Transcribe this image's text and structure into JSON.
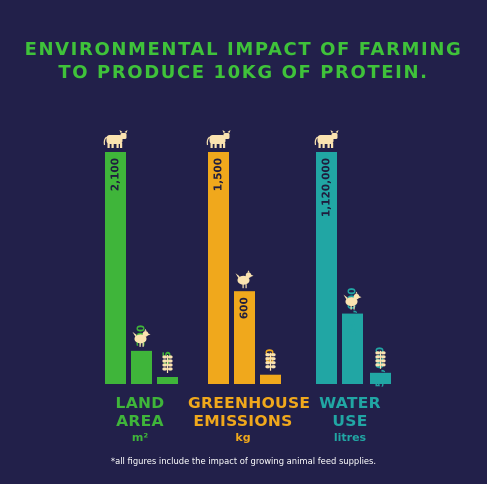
{
  "colors": {
    "background": "#22204a",
    "land": "#3fb53a",
    "greenhouse": "#f0a81c",
    "water": "#21a6a4",
    "icon": "#fbe3b0"
  },
  "title_lines": [
    "ENVIRONMENTAL IMPACT OF FARMING",
    "TO PRODUCE 10KG OF PROTEIN."
  ],
  "footnote": "*all figures include the impact of growing animal feed supplies.",
  "chart_data": {
    "type": "bar",
    "title": "ENVIRONMENTAL IMPACT OF FARMING TO PRODUCE 10KG OF PROTEIN.",
    "series_icons": [
      "cow-icon",
      "chicken-icon",
      "grain-icon"
    ],
    "groups": [
      {
        "key": "land",
        "label_lines": [
          "LAND",
          "AREA"
        ],
        "unit": "m²",
        "color": "#3fb53a",
        "values": [
          2100,
          300,
          45
        ],
        "labels": [
          "2,100",
          "300",
          "45"
        ]
      },
      {
        "key": "greenhouse",
        "label_lines": [
          "GREENHOUSE",
          "EMISSIONS"
        ],
        "unit": "kg",
        "color": "#f0a81c",
        "values": [
          1500,
          600,
          60
        ],
        "labels": [
          "1,500",
          "600",
          "60"
        ]
      },
      {
        "key": "water",
        "label_lines": [
          "WATER",
          "USE"
        ],
        "unit": "litres",
        "color": "#21a6a4",
        "values": [
          1120000,
          340000,
          54000
        ],
        "labels": [
          "1,120,000",
          "340,000",
          "54,000"
        ]
      }
    ]
  }
}
